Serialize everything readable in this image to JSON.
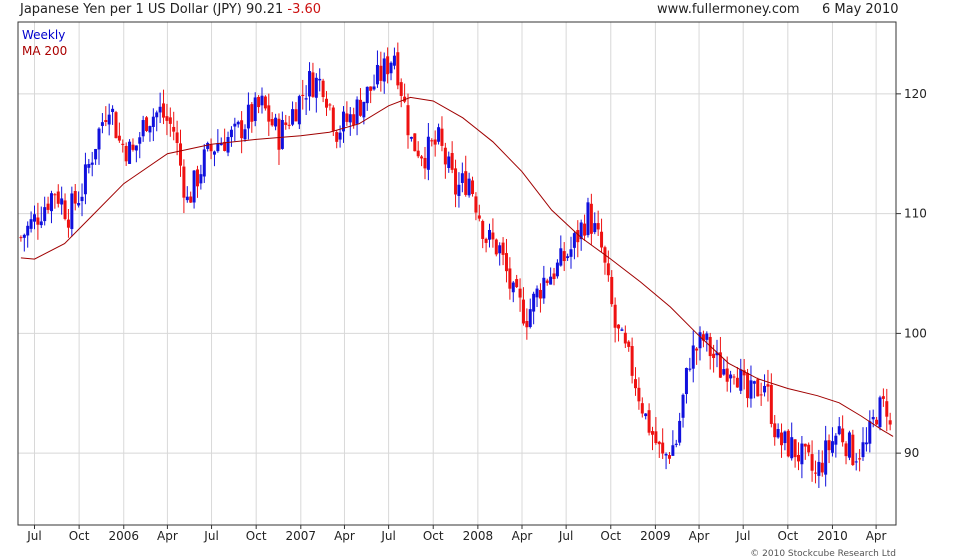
{
  "header": {
    "title": "Japanese Yen per 1 US Dollar (JPY)",
    "last_value": "90.21",
    "change": "-3.60",
    "source": "www.fullermoney.com",
    "date": "6 May 2010"
  },
  "footer": {
    "copyright": "© 2010 Stockcube Research Ltd"
  },
  "colors": {
    "up": "#1010dd",
    "down": "#ee1111",
    "ma": "#a00000",
    "grid": "#d8d8d8",
    "axis": "#333333"
  },
  "chart_data": {
    "type": "line",
    "subtype": "weekly-candlestick",
    "title": "Japanese Yen per 1 US Dollar (JPY)",
    "legend": [
      "Weekly",
      "MA 200"
    ],
    "legend_position": "top-left",
    "y_axis_position": "right",
    "grid": true,
    "ylim": [
      84,
      126
    ],
    "xlim": [
      "2005-05-28",
      "2010-05-12"
    ],
    "yticks": [
      90,
      100,
      110,
      120
    ],
    "xticks": [
      {
        "label": "Jul",
        "date": "2005-07-01"
      },
      {
        "label": "Oct",
        "date": "2005-10-01"
      },
      {
        "label": "2006",
        "date": "2006-01-01"
      },
      {
        "label": "Apr",
        "date": "2006-04-01"
      },
      {
        "label": "Jul",
        "date": "2006-07-01"
      },
      {
        "label": "Oct",
        "date": "2006-10-01"
      },
      {
        "label": "2007",
        "date": "2007-01-01"
      },
      {
        "label": "Apr",
        "date": "2007-04-01"
      },
      {
        "label": "Jul",
        "date": "2007-07-01"
      },
      {
        "label": "Oct",
        "date": "2007-10-01"
      },
      {
        "label": "2008",
        "date": "2008-01-01"
      },
      {
        "label": "Apr",
        "date": "2008-04-01"
      },
      {
        "label": "Jul",
        "date": "2008-07-01"
      },
      {
        "label": "Oct",
        "date": "2008-10-01"
      },
      {
        "label": "2009",
        "date": "2009-01-01"
      },
      {
        "label": "Apr",
        "date": "2009-04-01"
      },
      {
        "label": "Jul",
        "date": "2009-07-01"
      },
      {
        "label": "Oct",
        "date": "2009-10-01"
      },
      {
        "label": "2010",
        "date": "2010-01-01"
      },
      {
        "label": "Apr",
        "date": "2010-04-01"
      }
    ],
    "series": [
      {
        "name": "Weekly",
        "x": [
          "2005-06-03",
          "2005-07-01",
          "2005-08-12",
          "2005-09-09",
          "2005-10-07",
          "2005-11-04",
          "2005-12-02",
          "2005-12-23",
          "2006-01-20",
          "2006-02-17",
          "2006-03-17",
          "2006-04-14",
          "2006-05-12",
          "2006-06-16",
          "2006-07-14",
          "2006-08-18",
          "2006-09-15",
          "2006-10-13",
          "2006-11-17",
          "2006-12-15",
          "2007-01-19",
          "2007-02-16",
          "2007-03-16",
          "2007-04-13",
          "2007-05-18",
          "2007-06-22",
          "2007-07-13",
          "2007-08-17",
          "2007-09-14",
          "2007-10-12",
          "2007-11-16",
          "2007-12-14",
          "2008-01-18",
          "2008-02-15",
          "2008-03-14",
          "2008-04-11",
          "2008-05-16",
          "2008-06-13",
          "2008-07-11",
          "2008-08-15",
          "2008-09-12",
          "2008-10-10",
          "2008-11-14",
          "2008-12-12",
          "2009-01-16",
          "2009-02-13",
          "2009-03-13",
          "2009-04-10",
          "2009-05-15",
          "2009-06-12",
          "2009-07-10",
          "2009-08-14",
          "2009-09-11",
          "2009-10-09",
          "2009-11-13",
          "2009-11-27",
          "2009-12-18",
          "2010-01-15",
          "2010-02-12",
          "2010-03-12",
          "2010-04-02",
          "2010-04-23",
          "2010-05-06"
        ],
        "values": [
          108,
          109.5,
          112,
          110,
          112,
          116,
          119.5,
          116,
          115,
          118,
          118.5,
          117,
          111,
          114.5,
          116,
          116.5,
          118,
          119,
          116.5,
          118.5,
          121,
          121,
          117,
          118,
          120,
          122,
          123.5,
          116,
          115,
          116,
          112,
          113,
          108,
          107,
          103,
          101.5,
          104.5,
          105.5,
          107,
          110,
          107,
          100.5,
          97,
          93,
          89.5,
          91,
          98,
          99.5,
          97,
          97.5,
          94.5,
          96,
          91,
          90.5,
          89,
          88,
          90,
          92,
          90,
          90.5,
          93.5,
          94,
          90.21
        ]
      },
      {
        "name": "MA 200",
        "x": [
          "2005-06-03",
          "2005-07-01",
          "2005-09-01",
          "2005-11-01",
          "2006-01-01",
          "2006-04-01",
          "2006-07-01",
          "2006-10-01",
          "2007-01-01",
          "2007-03-01",
          "2007-05-01",
          "2007-07-01",
          "2007-08-15",
          "2007-10-01",
          "2007-12-01",
          "2008-02-01",
          "2008-04-01",
          "2008-06-01",
          "2008-08-01",
          "2008-10-01",
          "2008-12-01",
          "2009-02-01",
          "2009-04-01",
          "2009-06-01",
          "2009-08-01",
          "2009-10-01",
          "2009-12-01",
          "2010-01-15",
          "2010-03-01",
          "2010-04-15",
          "2010-05-06"
        ],
        "values": [
          106.3,
          106.2,
          107.5,
          110,
          112.5,
          115,
          115.8,
          116.2,
          116.5,
          116.8,
          117.5,
          119,
          119.7,
          119.4,
          118,
          116,
          113.5,
          110.3,
          108,
          106.2,
          104.3,
          102.2,
          99.8,
          97.5,
          96.2,
          95.4,
          94.8,
          94.2,
          93.1,
          91.9,
          91.4
        ]
      }
    ]
  }
}
